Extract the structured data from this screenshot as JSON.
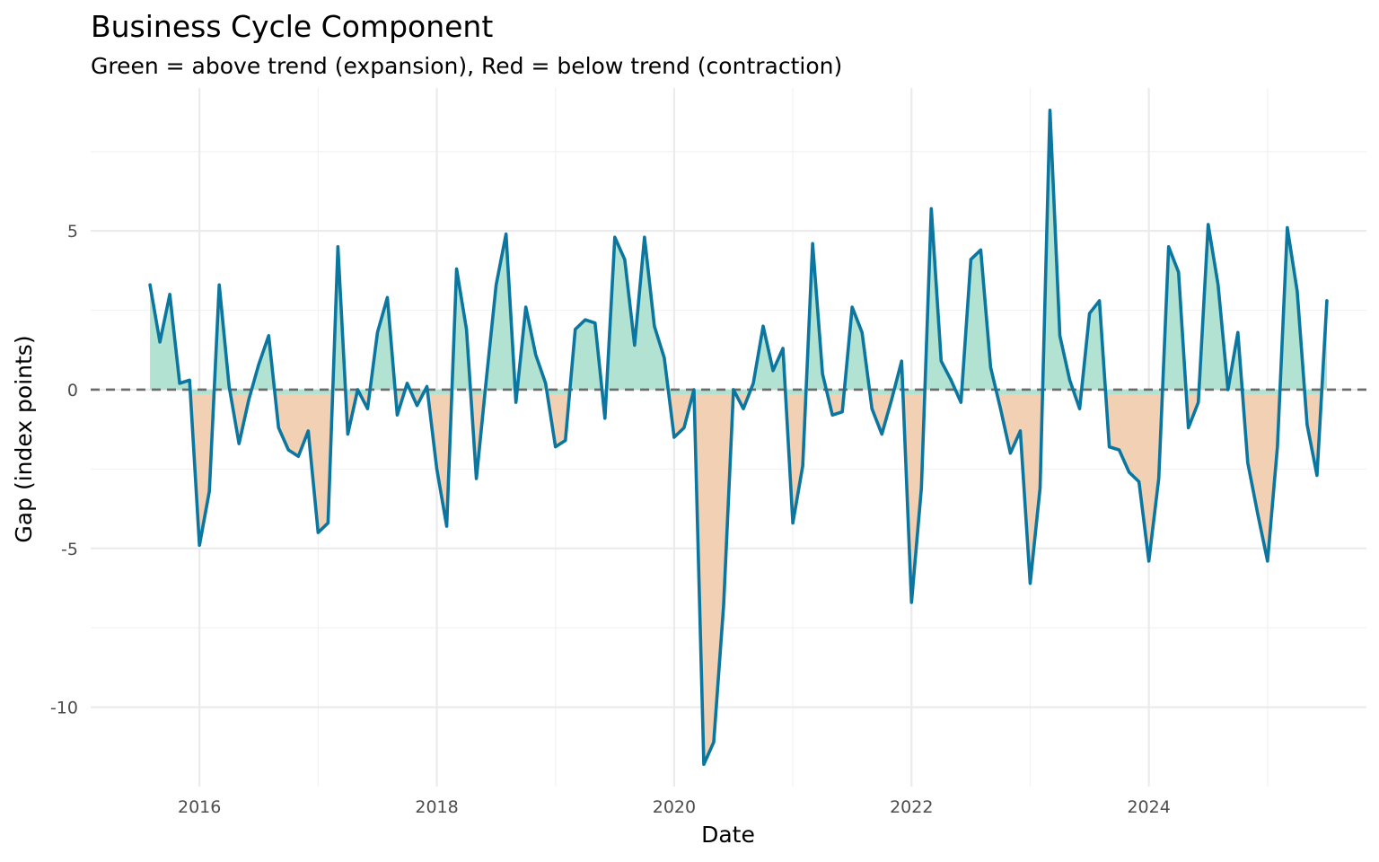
{
  "chart_data": {
    "type": "area",
    "title": "Business Cycle Component",
    "subtitle": "Green = above trend (expansion), Red = below trend (contraction)",
    "xlabel": "Date",
    "ylabel": "Gap (index points)",
    "x_start": "2015-08",
    "x_step": "1 month",
    "xlim": [
      "2015-02",
      "2025-11"
    ],
    "ylim": [
      -12.5,
      9.5
    ],
    "x_ticks": [
      "2016",
      "2018",
      "2020",
      "2022",
      "2024"
    ],
    "y_ticks": [
      -10,
      -5,
      0,
      5
    ],
    "y_tick_labels": [
      "-10",
      "-5",
      "0",
      "5"
    ],
    "reference_line": 0,
    "grid": true,
    "legend": "none",
    "colors": {
      "line": "#0b76a0",
      "positive_fill": "#b2e2d2",
      "negative_fill": "#f2d0b4",
      "reference": "#6b6b6b"
    },
    "values": [
      3.3,
      1.5,
      3.0,
      0.2,
      0.3,
      -4.9,
      -3.2,
      3.3,
      0.1,
      -1.7,
      -0.3,
      0.8,
      1.7,
      -1.2,
      -1.9,
      -2.1,
      -1.3,
      -4.5,
      -4.2,
      4.5,
      -1.4,
      0.0,
      -0.6,
      1.8,
      2.9,
      -0.8,
      0.2,
      -0.5,
      0.1,
      -2.5,
      -4.3,
      3.8,
      1.9,
      -2.8,
      0.3,
      3.3,
      4.9,
      -0.4,
      2.6,
      1.1,
      0.2,
      -1.8,
      -1.6,
      1.9,
      2.2,
      2.1,
      -0.9,
      4.8,
      4.1,
      1.4,
      4.8,
      2.0,
      1.0,
      -1.5,
      -1.2,
      0.0,
      -11.8,
      -11.1,
      -6.8,
      0.0,
      -0.6,
      0.2,
      2.0,
      0.6,
      1.3,
      -4.2,
      -2.4,
      4.6,
      0.5,
      -0.8,
      -0.7,
      2.6,
      1.8,
      -0.6,
      -1.4,
      -0.3,
      0.9,
      -6.7,
      -3.1,
      5.7,
      0.9,
      0.3,
      -0.4,
      4.1,
      4.4,
      0.7,
      -0.6,
      -2.0,
      -1.3,
      -6.1,
      -3.1,
      8.8,
      1.7,
      0.3,
      -0.6,
      2.4,
      2.8,
      -1.8,
      -1.9,
      -2.6,
      -2.9,
      -5.4,
      -2.8,
      4.5,
      3.7,
      -1.2,
      -0.4,
      5.2,
      3.3,
      0.0,
      1.8,
      -2.3,
      -3.9,
      -5.4,
      -1.8,
      5.1,
      3.1,
      -1.1,
      -2.7,
      2.8
    ]
  }
}
